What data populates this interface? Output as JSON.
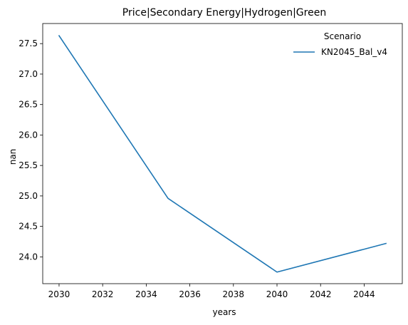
{
  "chart_data": {
    "type": "line",
    "title": "Price|Secondary Energy|Hydrogen|Green",
    "xlabel": "years",
    "ylabel": "nan",
    "x": [
      2030,
      2035,
      2040,
      2045
    ],
    "series": [
      {
        "name": "KN2045_Bal_v4",
        "values": [
          27.63,
          24.96,
          23.75,
          24.22
        ],
        "color": "#1f77b4"
      }
    ],
    "xlim": [
      2029.25,
      2045.75
    ],
    "ylim": [
      23.56,
      27.83
    ],
    "xticks": [
      2030,
      2032,
      2034,
      2036,
      2038,
      2040,
      2042,
      2044
    ],
    "yticks": [
      24.0,
      24.5,
      25.0,
      25.5,
      26.0,
      26.5,
      27.0,
      27.5
    ],
    "legend": {
      "title": "Scenario",
      "placement": "top-right"
    },
    "grid": false
  }
}
